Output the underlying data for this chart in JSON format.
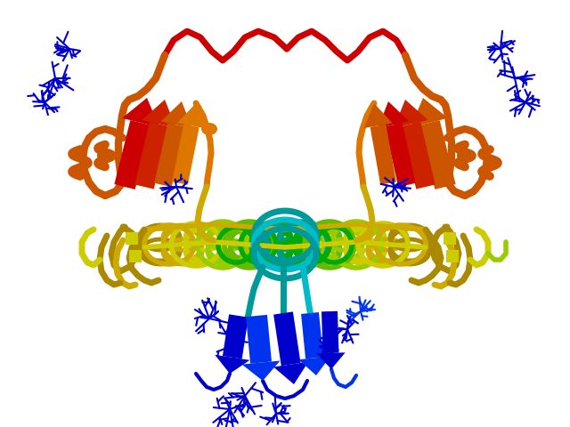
{
  "bg_color": "#ffffff",
  "fig_width": 6.4,
  "fig_height": 4.8,
  "dpi": 100,
  "colors": {
    "blue": "#0000cc",
    "blue2": "#0033ee",
    "cyan": "#00bbcc",
    "teal": "#009999",
    "green": "#00aa00",
    "limegreen": "#66bb00",
    "lime": "#99cc00",
    "yellow": "#cccc00",
    "gold": "#ccaa00",
    "darkyellow": "#aa8800",
    "orange": "#dd7700",
    "darkorange": "#cc5500",
    "redorange": "#cc2200",
    "red": "#cc0000",
    "darkred": "#990000"
  }
}
